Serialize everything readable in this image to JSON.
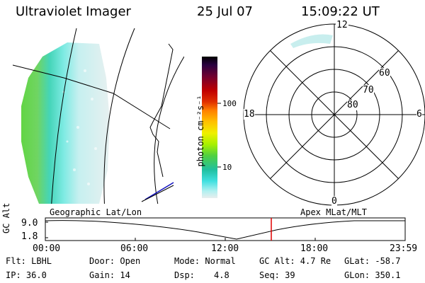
{
  "header": {
    "instrument": "Ultraviolet Imager",
    "date": "25 Jul 07",
    "time": "15:09:22 UT"
  },
  "colorbar": {
    "label": "photon cm⁻²s⁻¹",
    "ticks": [
      "100",
      "10"
    ],
    "colors": [
      "#000000",
      "#1a0030",
      "#3a0050",
      "#600040",
      "#900020",
      "#c00000",
      "#e03000",
      "#ff7000",
      "#ff9a00",
      "#ffc000",
      "#ffee00",
      "#d8ff00",
      "#a8f000",
      "#70e000",
      "#40d040",
      "#20c080",
      "#20d0c0",
      "#40e0e0",
      "#a0f0f0",
      "#d0f0f0",
      "#e8eeee"
    ]
  },
  "geo_map": {
    "label": "Geographic Lat/Lon"
  },
  "polar_plot": {
    "label": "Apex MLat/MLT",
    "mlt_labels": [
      "12",
      "18",
      "6",
      "0"
    ],
    "mlat_labels": [
      "60",
      "70",
      "80"
    ]
  },
  "alt_plot": {
    "ylabel": "GC Alt",
    "yticks": [
      "9.0",
      "1.8"
    ],
    "xticks": [
      "00:00",
      "06:00",
      "12:00",
      "18:00",
      "23:59"
    ],
    "current_time_marker": "15:09:22",
    "marker_color": "#e00000"
  },
  "status": {
    "flt": "Flt: LBHL",
    "ip": "IP: 36.0",
    "door": "Door: Open",
    "gain": "Gain: 14",
    "mode": "Mode: Normal",
    "dsp_label": "Dsp:",
    "dsp_value": "4.8",
    "gc_alt": "GC Alt: 4.7 Re",
    "seq": "Seq: 39",
    "glat": "GLat: -58.7",
    "glon": "GLon: 350.1"
  }
}
